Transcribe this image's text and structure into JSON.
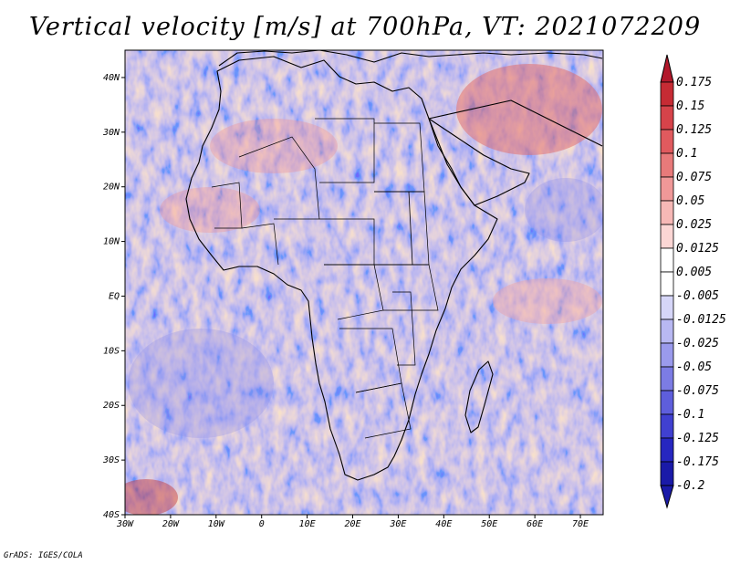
{
  "title": "Vertical velocity [m/s] at 700hPa, VT: 2021072209",
  "credit": "GrADS: IGES/COLA",
  "map": {
    "region": "Africa and surrounding oceans",
    "lon_range": [
      -30,
      75
    ],
    "lat_range": [
      -40,
      45
    ],
    "lat_ticks": [
      {
        "label": "40N",
        "lat": 40
      },
      {
        "label": "30N",
        "lat": 30
      },
      {
        "label": "20N",
        "lat": 20
      },
      {
        "label": "10N",
        "lat": 10
      },
      {
        "label": "EQ",
        "lat": 0
      },
      {
        "label": "10S",
        "lat": -10
      },
      {
        "label": "20S",
        "lat": -20
      },
      {
        "label": "30S",
        "lat": -30
      },
      {
        "label": "40S",
        "lat": -40
      }
    ],
    "lon_ticks": [
      {
        "label": "30W",
        "lon": -30
      },
      {
        "label": "20W",
        "lon": -20
      },
      {
        "label": "10W",
        "lon": -10
      },
      {
        "label": "0",
        "lon": 0
      },
      {
        "label": "10E",
        "lon": 10
      },
      {
        "label": "20E",
        "lon": 20
      },
      {
        "label": "30E",
        "lon": 30
      },
      {
        "label": "40E",
        "lon": 40
      },
      {
        "label": "50E",
        "lon": 50
      },
      {
        "label": "60E",
        "lon": 60
      },
      {
        "label": "70E",
        "lon": 70
      }
    ]
  },
  "colorbar": {
    "levels": [
      {
        "label": "0.175",
        "color": "#b2182b"
      },
      {
        "label": "0.15",
        "color": "#c62b34"
      },
      {
        "label": "0.125",
        "color": "#d6434a"
      },
      {
        "label": "0.1",
        "color": "#e05a5e"
      },
      {
        "label": "0.075",
        "color": "#e87a7a"
      },
      {
        "label": "0.05",
        "color": "#f09898"
      },
      {
        "label": "0.025",
        "color": "#f6b8b6"
      },
      {
        "label": "0.0125",
        "color": "#fbd6d4"
      },
      {
        "label": "0.005",
        "color": "#ffffff"
      },
      {
        "label": "-0.005",
        "color": "#ffffff"
      },
      {
        "label": "-0.0125",
        "color": "#d6d6f8"
      },
      {
        "label": "-0.025",
        "color": "#b8b8f2"
      },
      {
        "label": "-0.05",
        "color": "#9a9aec"
      },
      {
        "label": "-0.075",
        "color": "#7c7ce4"
      },
      {
        "label": "-0.1",
        "color": "#5e5edc"
      },
      {
        "label": "-0.125",
        "color": "#4040d0"
      },
      {
        "label": "-0.175",
        "color": "#2626c0"
      },
      {
        "label": "-0.2",
        "color": "#1a1aa8"
      }
    ],
    "top_color": "#b2182b",
    "bottom_color": "#1a1aa8"
  }
}
